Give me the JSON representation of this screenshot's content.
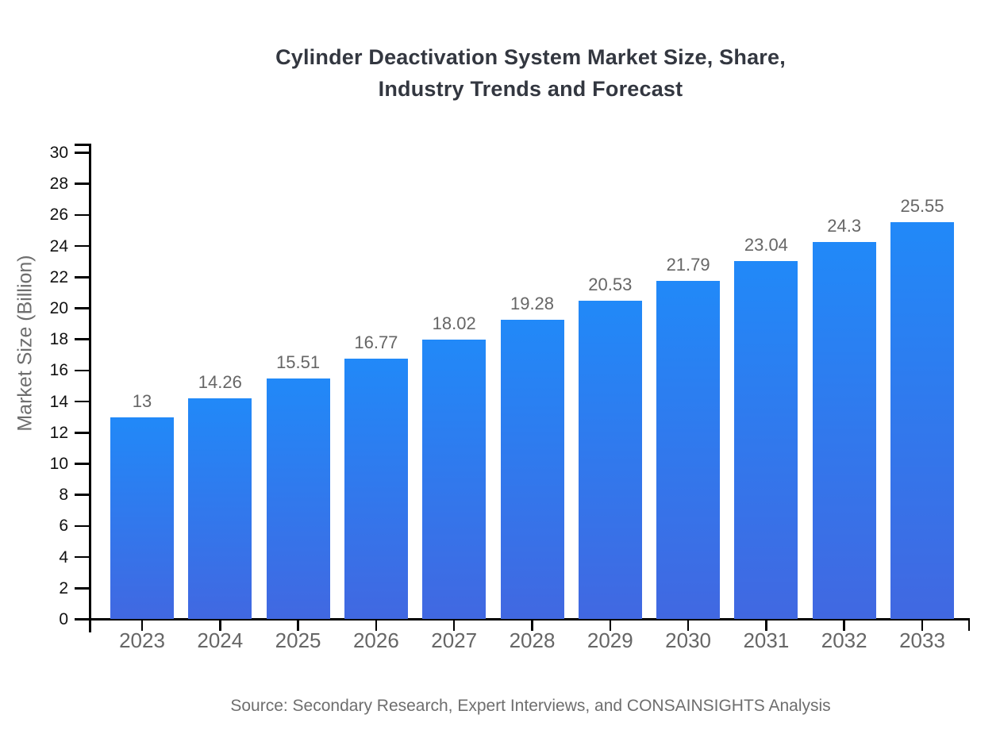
{
  "header": {
    "title_line1": "Cylinder Deactivation System Market Size, Share,",
    "title_line2": "Industry Trends and Forecast"
  },
  "chart_data": {
    "type": "bar",
    "title": "Cylinder Deactivation System Market Size, Share, Industry Trends and Forecast",
    "categories": [
      "2023",
      "2024",
      "2025",
      "2026",
      "2027",
      "2028",
      "2029",
      "2030",
      "2031",
      "2032",
      "2033"
    ],
    "values": [
      13,
      14.26,
      15.51,
      16.77,
      18.02,
      19.28,
      20.53,
      21.79,
      23.04,
      24.3,
      25.55
    ],
    "value_labels": [
      "13",
      "14.26",
      "15.51",
      "16.77",
      "18.02",
      "19.28",
      "20.53",
      "21.79",
      "23.04",
      "24.3",
      "25.55"
    ],
    "xlabel": "",
    "ylabel": "Market Size (Billion)",
    "ylim": [
      0,
      30
    ],
    "ytick_step": 2,
    "grid": false,
    "legend_position": "none",
    "colors": {
      "bar_gradient_top": "#2189f8",
      "bar_gradient_bottom": "#4168e1",
      "axis": "#000000",
      "y_tick_label": "#111111",
      "x_tick_label": "#666666",
      "value_label": "#666666",
      "title": "#333740",
      "axis_title": "#6e6e6e",
      "source": "#6e6e6e"
    }
  },
  "footer": {
    "source": "Source: Secondary Research, Expert Interviews, and CONSAINSIGHTS Analysis"
  }
}
